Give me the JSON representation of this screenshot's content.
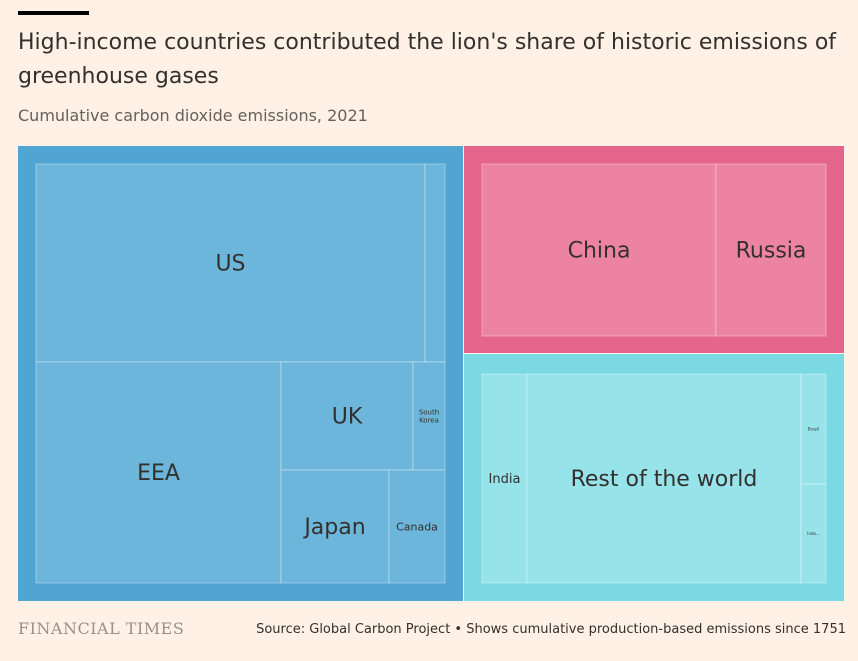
{
  "header": {
    "title": "High-income countries contributed the lion's share of historic emissions of greenhouse gases",
    "subtitle": "Cumulative carbon dioxide emissions, 2021"
  },
  "footer": {
    "brand": "FINANCIAL TIMES",
    "source": "Source: Global Carbon Project • Shows cumulative production-based emissions since 1751"
  },
  "colors": {
    "background": "#fff1e5",
    "high_income_group": "#50a5d3",
    "high_income_tile": "#6db6db",
    "upper_middle_group": "#e5658c",
    "upper_middle_tile": "#ec83a3",
    "other_group": "#7bd9e3",
    "other_tile": "#97e3ea"
  },
  "chart_data": {
    "type": "treemap",
    "title": "High-income countries contributed the lion's share of historic emissions of greenhouse gases",
    "subtitle": "Cumulative carbon dioxide emissions, 2021",
    "groups": [
      {
        "color_key": "high_income",
        "items": [
          {
            "label": "US",
            "value": 25.3
          },
          {
            "label": "",
            "value": 0.4
          },
          {
            "label": "EEA",
            "value": 14.0
          },
          {
            "label": "UK",
            "value": 5.0
          },
          {
            "label": "South Korea",
            "value": 1.6
          },
          {
            "label": "Japan",
            "value": 4.0
          },
          {
            "label": "Canada",
            "value": 2.0
          }
        ]
      },
      {
        "color_key": "upper_middle",
        "items": [
          {
            "label": "China",
            "value": 14.3
          },
          {
            "label": "Russia",
            "value": 6.7
          }
        ]
      },
      {
        "color_key": "other",
        "items": [
          {
            "label": "India",
            "value": 3.3
          },
          {
            "label": "Rest of the world",
            "value": 19.5
          },
          {
            "label": "Brazil",
            "value": 0.9
          },
          {
            "label": "Indo...",
            "value": 0.7
          }
        ]
      }
    ]
  }
}
